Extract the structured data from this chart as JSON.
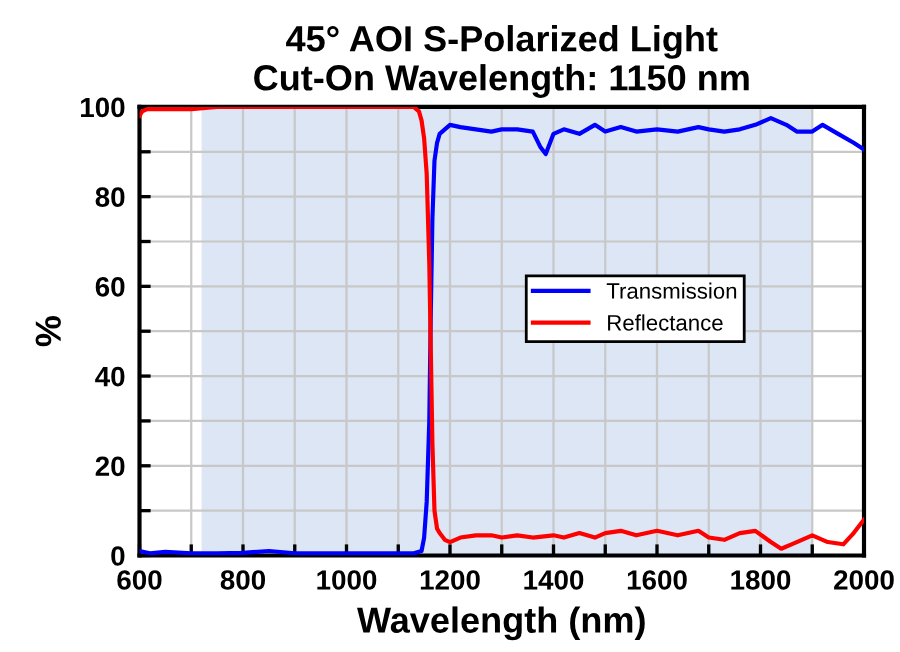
{
  "chart_data": {
    "type": "line",
    "title": "45° AOI S-Polarized Light\nCut-On Wavelength: 1150 nm",
    "xlabel": "Wavelength (nm)",
    "ylabel": "%",
    "xlim": [
      600,
      2000
    ],
    "ylim": [
      0,
      100
    ],
    "xticks": [
      600,
      {
        "value": 700,
        "label": null
      },
      800,
      {
        "value": 900,
        "label": null
      },
      1000,
      {
        "value": 1100,
        "label": null
      },
      1200,
      {
        "value": 1300,
        "label": null
      },
      1400,
      {
        "value": 1500,
        "label": null
      },
      1600,
      {
        "value": 1700,
        "label": null
      },
      1800,
      {
        "value": 1900,
        "label": null
      },
      2000
    ],
    "yticks": [
      0,
      {
        "value": 10,
        "label": null
      },
      20,
      {
        "value": 30,
        "label": null
      },
      40,
      {
        "value": 50,
        "label": null
      },
      60,
      {
        "value": 70,
        "label": null
      },
      80,
      {
        "value": 90,
        "label": null
      },
      100
    ],
    "grid": true,
    "legend": "right",
    "bands": [
      {
        "axis": "x",
        "from": 720,
        "to": 1900,
        "color": "#dce6f5"
      }
    ],
    "series": [
      {
        "name": "Transmission",
        "color": "#0000ff",
        "x": [
          600,
          620,
          650,
          700,
          750,
          800,
          850,
          900,
          950,
          1000,
          1050,
          1100,
          1130,
          1145,
          1150,
          1155,
          1160,
          1163,
          1166,
          1170,
          1175,
          1180,
          1190,
          1200,
          1220,
          1250,
          1280,
          1300,
          1330,
          1360,
          1375,
          1385,
          1400,
          1420,
          1450,
          1480,
          1500,
          1530,
          1560,
          1600,
          1640,
          1680,
          1700,
          1730,
          1760,
          1790,
          1820,
          1850,
          1870,
          1900,
          1920,
          1950,
          1980,
          2000
        ],
        "values": [
          1,
          0.5,
          0.8,
          0.5,
          0.5,
          0.6,
          1,
          0.5,
          0.5,
          0.5,
          0.5,
          0.5,
          0.5,
          1,
          4,
          12,
          30,
          55,
          75,
          88,
          92,
          94,
          95,
          96,
          95.5,
          95,
          94.5,
          95,
          95,
          94.5,
          91,
          89.5,
          94,
          95,
          94,
          96,
          94.5,
          95.5,
          94.5,
          95,
          94.5,
          95.5,
          95,
          94.5,
          95,
          96,
          97.5,
          96,
          94.5,
          94.5,
          96,
          94,
          92,
          90.5
        ]
      },
      {
        "name": "Reflectance",
        "color": "#ff0000",
        "x": [
          600,
          605,
          615,
          650,
          700,
          750,
          800,
          850,
          900,
          950,
          1000,
          1050,
          1100,
          1130,
          1140,
          1145,
          1150,
          1155,
          1160,
          1163,
          1166,
          1170,
          1175,
          1180,
          1190,
          1200,
          1220,
          1250,
          1280,
          1300,
          1330,
          1360,
          1400,
          1420,
          1450,
          1480,
          1500,
          1530,
          1560,
          1600,
          1640,
          1680,
          1700,
          1730,
          1760,
          1790,
          1820,
          1840,
          1860,
          1900,
          1930,
          1960,
          1980,
          2000
        ],
        "values": [
          98,
          99,
          99.5,
          99.5,
          99.5,
          100,
          100,
          100,
          100,
          100,
          100,
          100,
          100,
          100,
          99,
          97,
          93,
          85,
          65,
          45,
          25,
          10,
          6,
          5,
          3.5,
          3,
          4,
          4.5,
          4.5,
          4,
          4.5,
          4,
          4.5,
          4,
          5,
          4,
          5,
          5.5,
          4.5,
          5.5,
          4.5,
          5.5,
          4,
          3.5,
          5,
          5.5,
          3,
          1.5,
          2.5,
          4.5,
          3,
          2.5,
          5,
          8
        ]
      }
    ]
  }
}
